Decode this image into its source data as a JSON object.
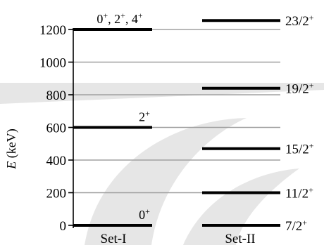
{
  "colors": {
    "level": "#000000",
    "gridline": "#a0a0a0",
    "axis": "#000000",
    "watermark": "#d8d8d8"
  },
  "y_axis": {
    "label_italic": "E",
    "label_rest": " (keV)",
    "range": [
      0,
      1260
    ],
    "ticks": [
      0,
      200,
      400,
      600,
      800,
      1000,
      1200
    ]
  },
  "set_1": {
    "name": "Set-I",
    "levels": [
      {
        "energy": 0,
        "label": "0"
      },
      {
        "energy": 600,
        "label": "2"
      },
      {
        "energy": 1200,
        "label": "0, 2, 4"
      }
    ]
  },
  "set_2": {
    "name": "Set-II",
    "levels": [
      {
        "energy": 0,
        "label": "7/2"
      },
      {
        "energy": 200,
        "label": "11/2"
      },
      {
        "energy": 470,
        "label": "15/2"
      },
      {
        "energy": 840,
        "label": "19/2"
      },
      {
        "energy": 1255,
        "label": "23/2"
      }
    ]
  },
  "parity_superscript": "+"
}
